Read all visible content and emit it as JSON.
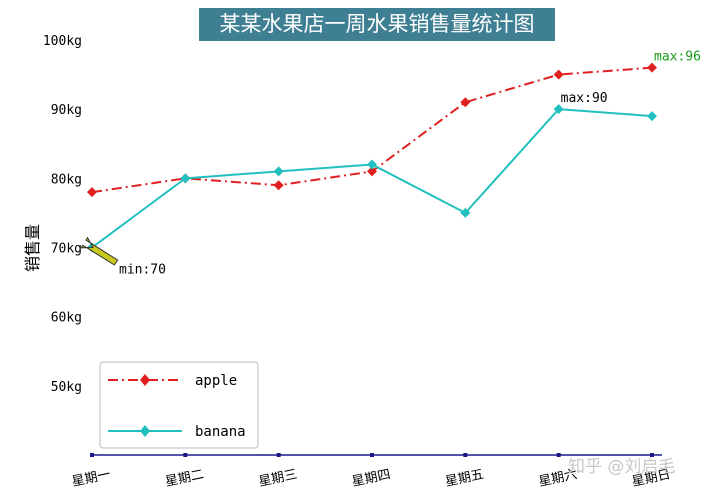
{
  "chart_data": {
    "type": "line",
    "title": "某某水果店一周水果销售量统计图",
    "ylabel": "销售量",
    "xlabel": "",
    "categories": [
      "星期一",
      "星期二",
      "星期三",
      "星期四",
      "星期五",
      "星期六",
      "星期日"
    ],
    "ylim": [
      40,
      100
    ],
    "yticks": [
      50,
      60,
      70,
      80,
      90,
      100
    ],
    "ytick_suffix": "kg",
    "series": [
      {
        "name": "apple",
        "values": [
          78,
          80,
          79,
          81,
          91,
          95,
          96
        ],
        "color": "#e02020",
        "line_style": "dash-dot",
        "marker": "diamond"
      },
      {
        "name": "banana",
        "values": [
          70,
          80,
          81,
          82,
          75,
          90,
          89
        ],
        "color": "#22bfbf",
        "line_style": "solid",
        "marker": "diamond"
      }
    ],
    "annotations": [
      {
        "text": "max:96",
        "series": "apple",
        "category": "星期日",
        "color": "#1a9a1a"
      },
      {
        "text": "max:90",
        "series": "banana",
        "category": "星期六",
        "color": "#000000"
      },
      {
        "text": "min:70",
        "series": "banana",
        "category": "星期一",
        "color": "#000000",
        "arrow": true,
        "arrow_color": "#c8c820"
      }
    ],
    "legend_position": "lower-left",
    "grid": false
  },
  "watermark": "知乎 @刘启毛"
}
